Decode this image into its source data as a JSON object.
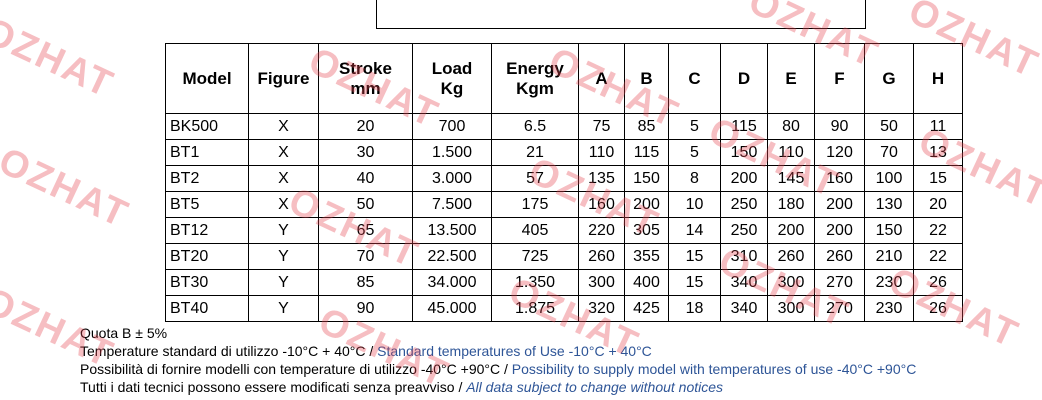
{
  "table": {
    "header": [
      "Model",
      "Figure",
      [
        "Stroke",
        "mm"
      ],
      [
        "Load",
        "Kg"
      ],
      [
        "Energy",
        "Kgm"
      ],
      "A",
      "B",
      "C",
      "D",
      "E",
      "F",
      "G",
      "H"
    ],
    "rows": [
      [
        "BK500",
        "X",
        "20",
        "700",
        "6.5",
        "75",
        "85",
        "5",
        "115",
        "80",
        "90",
        "50",
        "11"
      ],
      [
        "BT1",
        "X",
        "30",
        "1.500",
        "21",
        "110",
        "115",
        "5",
        "150",
        "110",
        "120",
        "70",
        "13"
      ],
      [
        "BT2",
        "X",
        "40",
        "3.000",
        "57",
        "135",
        "150",
        "8",
        "200",
        "145",
        "160",
        "100",
        "15"
      ],
      [
        "BT5",
        "X",
        "50",
        "7.500",
        "175",
        "160",
        "200",
        "10",
        "250",
        "180",
        "200",
        "130",
        "20"
      ],
      [
        "BT12",
        "Y",
        "65",
        "13.500",
        "405",
        "220",
        "305",
        "14",
        "250",
        "200",
        "200",
        "150",
        "22"
      ],
      [
        "BT20",
        "Y",
        "70",
        "22.500",
        "725",
        "260",
        "355",
        "15",
        "310",
        "260",
        "260",
        "210",
        "22"
      ],
      [
        "BT30",
        "Y",
        "85",
        "34.000",
        "1.350",
        "300",
        "400",
        "15",
        "340",
        "300",
        "270",
        "230",
        "26"
      ],
      [
        "BT40",
        "Y",
        "90",
        "45.000",
        "1.875",
        "320",
        "425",
        "18",
        "340",
        "300",
        "270",
        "230",
        "26"
      ]
    ]
  },
  "notes": [
    {
      "it": "Quota B ± 5%"
    },
    {
      "it": "Temperature standard di utilizzo -10°C + 40°C / ",
      "en": "Standard temperatures of Use -10°C + 40°C"
    },
    {
      "it": "Possibilità di fornire modelli con temperature di utilizzo -40°C +90°C / ",
      "en": "Possibility to supply model with temperatures of use -40°C +90°C"
    },
    {
      "it": "Tutti i dati tecnici possono essere modificati senza preavviso / ",
      "en": "All data subject to change without notices"
    }
  ],
  "watermark": "OZHAT"
}
